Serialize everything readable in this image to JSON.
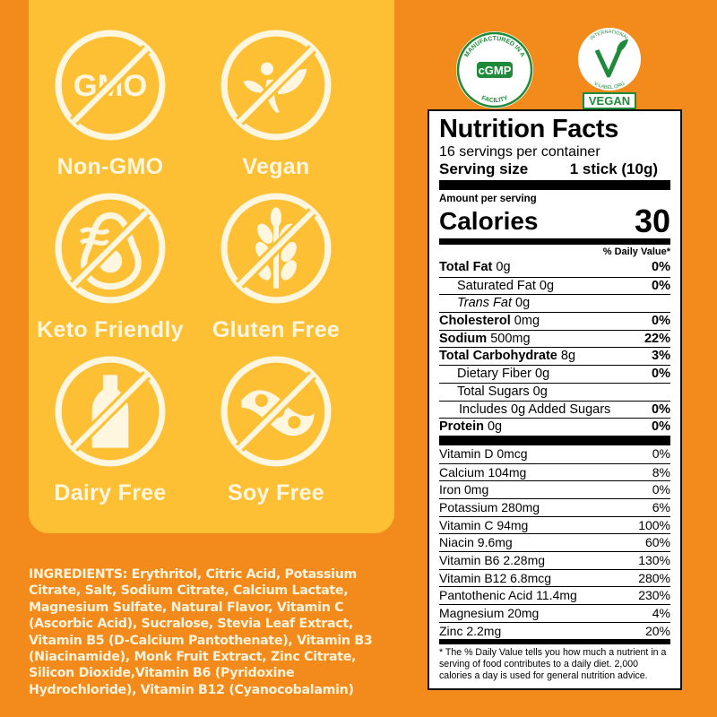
{
  "colors": {
    "background": "#F28A1C",
    "panel": "#FDBF33",
    "icon": "#FFF6E0",
    "seal_green": "#1E8A3A"
  },
  "badges": [
    {
      "icon": "gmo-icon",
      "label": "Non-GMO",
      "glyph": "GMO"
    },
    {
      "icon": "vegan-sprout-icon",
      "label": "Vegan"
    },
    {
      "icon": "avocado-icon",
      "label": "Keto Friendly"
    },
    {
      "icon": "wheat-icon",
      "label": "Gluten Free"
    },
    {
      "icon": "milk-bottle-icon",
      "label": "Dairy Free"
    },
    {
      "icon": "soybean-icon",
      "label": "Soy Free"
    }
  ],
  "seals": {
    "cgmp": {
      "center": "cGMP",
      "ring_top": "MANUFACTURED IN A",
      "ring_bottom": "FACILITY"
    },
    "vegan": {
      "ring_top": "INTERNATIONAL",
      "ring_bottom": "V-LABEL.ORG",
      "label": "VEGAN"
    }
  },
  "ingredients": {
    "heading": "INGREDIENTS:",
    "text": " Erythritol, Citric Acid, Potassium Citrate, Salt, Sodium Citrate, Calcium Lactate, Magnesium Sulfate, Natural Flavor, Vitamin C (Ascorbic Acid), Sucralose, Stevia Leaf Extract, Vitamin B5 (D-Calcium Pantothenate), Vitamin B3 (Niacinamide), Monk Fruit Extract, Zinc Citrate, Silicon Dioxide,Vitamin B6 (Pyridoxine Hydrochloride), Vitamin B12 (Cyanocobalamin)"
  },
  "nutrition": {
    "title": "Nutrition Facts",
    "servings": "16 servings per container",
    "serving_size_label": "Serving size",
    "serving_size": "1 stick (10g)",
    "amount_per_serving": "Amount per serving",
    "calories_label": "Calories",
    "calories": "30",
    "dv_header": "% Daily Value*",
    "rows": [
      {
        "name": "Total Fat",
        "amt": "0g",
        "pct": "0%",
        "bold": true,
        "indent": 0
      },
      {
        "name": "Saturated Fat",
        "amt": "0g",
        "pct": "0%",
        "bold": false,
        "indent": 1
      },
      {
        "name": "Trans Fat",
        "amt": "0g",
        "pct": "",
        "bold": false,
        "indent": 1,
        "italic": true
      },
      {
        "name": "Cholesterol",
        "amt": "0mg",
        "pct": "0%",
        "bold": true,
        "indent": 0
      },
      {
        "name": "Sodium",
        "amt": "500mg",
        "pct": "22%",
        "bold": true,
        "indent": 0
      },
      {
        "name": "Total Carbohydrate",
        "amt": "8g",
        "pct": "3%",
        "bold": true,
        "indent": 0
      },
      {
        "name": "Dietary Fiber",
        "amt": "0g",
        "pct": "0%",
        "bold": false,
        "indent": 1
      },
      {
        "name": "Total Sugars",
        "amt": "0g",
        "pct": "",
        "bold": false,
        "indent": 1
      },
      {
        "name": "Includes 0g Added Sugars",
        "amt": "",
        "pct": "0%",
        "bold": false,
        "indent": 2
      },
      {
        "name": "Protein",
        "amt": "0g",
        "pct": "0%",
        "bold": true,
        "indent": 0
      }
    ],
    "vitamins": [
      {
        "name": "Vitamin D 0mcg",
        "pct": "0%"
      },
      {
        "name": "Calcium 104mg",
        "pct": "8%"
      },
      {
        "name": "Iron 0mg",
        "pct": "0%"
      },
      {
        "name": "Potassium 280mg",
        "pct": "6%"
      },
      {
        "name": "Vitamin C 94mg",
        "pct": "100%"
      },
      {
        "name": "Niacin 9.6mg",
        "pct": "60%"
      },
      {
        "name": "Vitamin B6 2.28mg",
        "pct": "130%"
      },
      {
        "name": "Vitamin B12 6.8mcg",
        "pct": "280%"
      },
      {
        "name": "Pantothenic Acid 11.4mg",
        "pct": "230%"
      },
      {
        "name": "Magnesium 20mg",
        "pct": "4%"
      },
      {
        "name": "Zinc 2.2mg",
        "pct": "20%"
      }
    ],
    "footnote": "* The % Daily Value tells you how much a nutrient in a serving of food contributes to a daily diet. 2,000 calories a day is used for general nutrition advice."
  }
}
